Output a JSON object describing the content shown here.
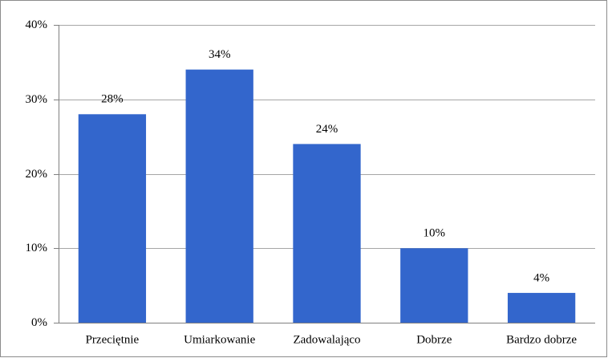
{
  "chart_data": {
    "type": "bar",
    "categories": [
      "Przeciętnie",
      "Umiarkowanie",
      "Zadowalająco",
      "Dobrze",
      "Bardzo dobrze"
    ],
    "values": [
      28,
      34,
      24,
      10,
      4
    ],
    "value_labels": [
      "28%",
      "34%",
      "24%",
      "10%",
      "4%"
    ],
    "color": "#3366cc",
    "ylim": [
      0,
      40
    ],
    "yticks": [
      {
        "value": 0,
        "label": "0%"
      },
      {
        "value": 10,
        "label": "10%"
      },
      {
        "value": 20,
        "label": "20%"
      },
      {
        "value": 30,
        "label": "30%"
      },
      {
        "value": 40,
        "label": "40%"
      }
    ],
    "grid": true
  }
}
